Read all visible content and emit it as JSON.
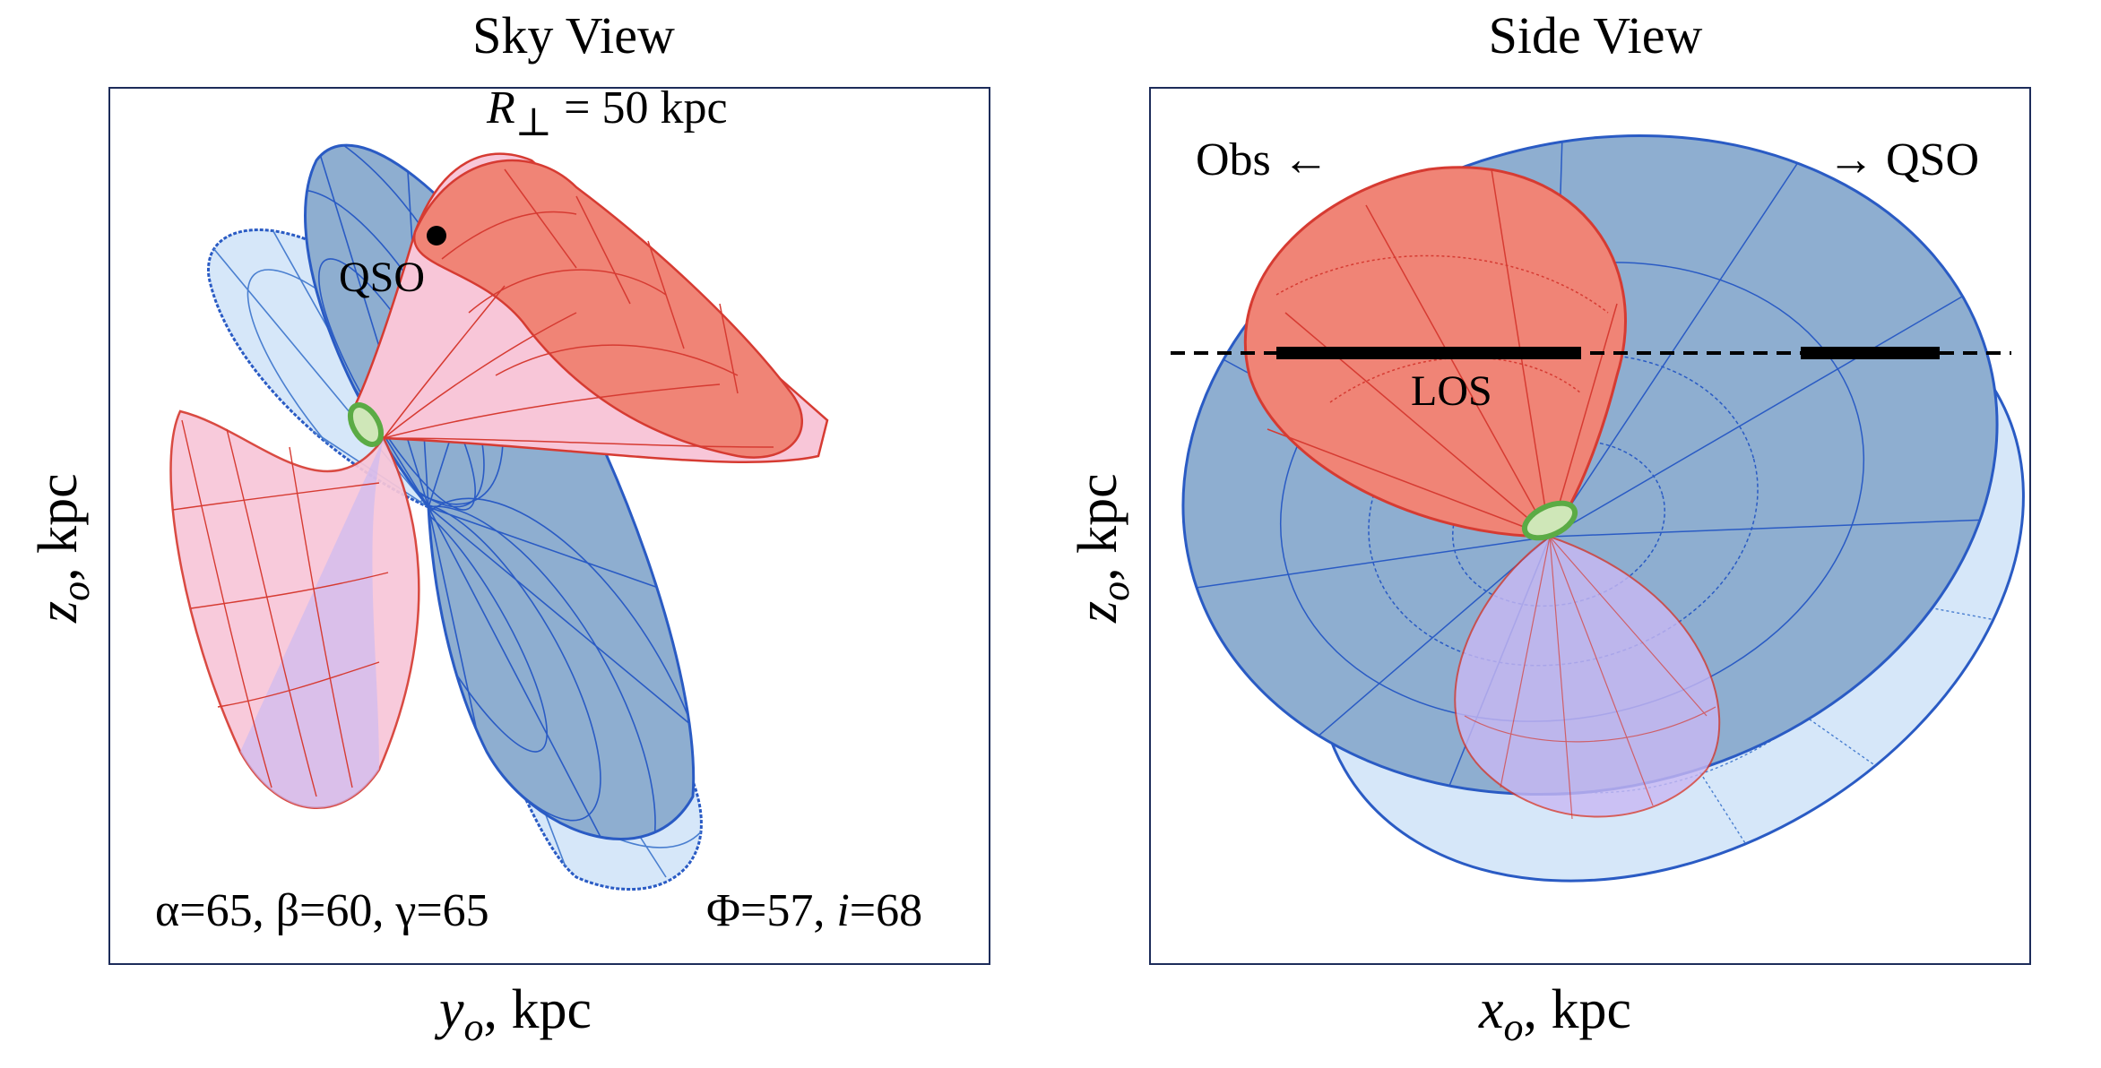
{
  "panels": [
    {
      "title": "Sky View",
      "x_axis": {
        "symbol": "y",
        "subscript": "o",
        "unit": ", kpc"
      },
      "y_axis": {
        "symbol": "z",
        "subscript": "o",
        "unit": ", kpc"
      },
      "annotations": {
        "radius": {
          "symbol": "R",
          "subscript": "⊥",
          "value": " = 50 kpc"
        },
        "qso": "QSO",
        "angles": "α=65, β=60, γ=65",
        "phi": "Φ=57, ",
        "incl_symbol": "i",
        "incl_value": "=68"
      }
    },
    {
      "title": "Side View",
      "x_axis": {
        "symbol": "x",
        "subscript": "o",
        "unit": ", kpc"
      },
      "y_axis": {
        "symbol": "z",
        "subscript": "o",
        "unit": ", kpc"
      },
      "annotations": {
        "obs": "Obs",
        "obs_arrow": "←",
        "qso_arrow": "→",
        "qso": "QSO",
        "los": "LOS"
      }
    }
  ],
  "colors": {
    "disk_dark": "#8eaed0",
    "disk_light": "#d6e7f9",
    "disk_edge": "#2a5bc4",
    "cone_red": "#f08476",
    "cone_pink": "#f8c6d8",
    "cone_edge": "#d63b32",
    "cone_violet": "#c9b8f3",
    "nucleus": "#5bab45"
  }
}
